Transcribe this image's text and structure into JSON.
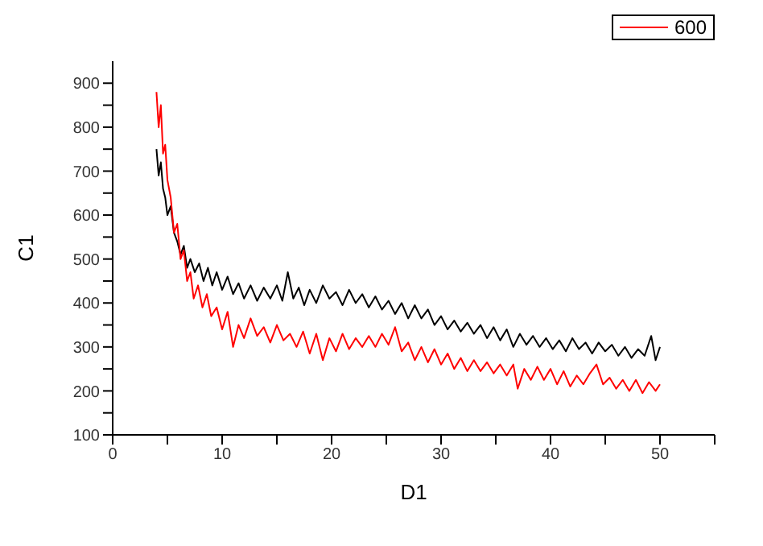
{
  "chart_data": {
    "type": "line",
    "xlabel": "D1",
    "ylabel": "C1",
    "xlim": [
      0,
      55
    ],
    "ylim": [
      100,
      950
    ],
    "xticks": [
      0,
      {
        "value": 5,
        "label": null
      },
      10,
      {
        "value": 15,
        "label": null
      },
      20,
      {
        "value": 25,
        "label": null
      },
      30,
      {
        "value": 35,
        "label": null
      },
      40,
      {
        "value": 45,
        "label": null
      },
      50,
      {
        "value": 55,
        "label": null
      }
    ],
    "yticks": [
      100,
      {
        "value": 150,
        "label": null
      },
      200,
      {
        "value": 250,
        "label": null
      },
      300,
      {
        "value": 350,
        "label": null
      },
      400,
      {
        "value": 450,
        "label": null
      },
      500,
      {
        "value": 550,
        "label": null
      },
      600,
      {
        "value": 650,
        "label": null
      },
      700,
      {
        "value": 750,
        "label": null
      },
      800,
      {
        "value": 850,
        "label": null
      },
      900
    ],
    "grid": false,
    "legend": "top right",
    "marker": "none",
    "line_style": "solid",
    "series": [
      {
        "color": "#000000",
        "x": [
          4,
          4.2,
          4.4,
          4.6,
          4.8,
          5,
          5.3,
          5.6,
          5.9,
          6.2,
          6.5,
          6.8,
          7.1,
          7.5,
          7.9,
          8.3,
          8.7,
          9.1,
          9.5,
          10,
          10.5,
          11,
          11.5,
          12,
          12.6,
          13.2,
          13.8,
          14.4,
          15,
          15.5,
          16,
          16.5,
          17,
          17.5,
          18,
          18.6,
          19.2,
          19.8,
          20.4,
          21,
          21.6,
          22.2,
          22.8,
          23.4,
          24,
          24.6,
          25.2,
          25.8,
          26.4,
          27,
          27.6,
          28.2,
          28.8,
          29.4,
          30,
          30.6,
          31.2,
          31.8,
          32.4,
          33,
          33.6,
          34.2,
          34.8,
          35.4,
          36,
          36.6,
          37.2,
          37.8,
          38.4,
          39,
          39.6,
          40.2,
          40.8,
          41.4,
          42,
          42.6,
          43.2,
          43.8,
          44.4,
          45,
          45.6,
          46.2,
          46.8,
          47.4,
          48,
          48.6,
          49.2,
          49.6,
          50
        ],
        "values": [
          750,
          690,
          720,
          660,
          640,
          600,
          620,
          560,
          540,
          510,
          530,
          480,
          500,
          470,
          490,
          450,
          480,
          440,
          470,
          430,
          460,
          420,
          445,
          410,
          440,
          405,
          435,
          410,
          440,
          405,
          470,
          410,
          435,
          395,
          430,
          400,
          440,
          410,
          425,
          395,
          430,
          400,
          420,
          390,
          415,
          385,
          405,
          375,
          400,
          365,
          395,
          365,
          385,
          350,
          370,
          340,
          360,
          335,
          355,
          330,
          350,
          320,
          345,
          315,
          340,
          300,
          330,
          305,
          325,
          300,
          320,
          295,
          315,
          290,
          320,
          295,
          310,
          285,
          310,
          290,
          305,
          280,
          300,
          275,
          295,
          280,
          325,
          270,
          300
        ]
      },
      {
        "name": "600",
        "color": "#ff0000",
        "x": [
          4,
          4.2,
          4.4,
          4.6,
          4.8,
          5,
          5.3,
          5.6,
          5.9,
          6.2,
          6.5,
          6.8,
          7.1,
          7.4,
          7.8,
          8.2,
          8.6,
          9,
          9.5,
          10,
          10.5,
          11,
          11.5,
          12,
          12.6,
          13.2,
          13.8,
          14.4,
          15,
          15.6,
          16.2,
          16.8,
          17.4,
          18,
          18.6,
          19.2,
          19.8,
          20.4,
          21,
          21.6,
          22.2,
          22.8,
          23.4,
          24,
          24.6,
          25.2,
          25.8,
          26.4,
          27,
          27.6,
          28.2,
          28.8,
          29.4,
          30,
          30.6,
          31.2,
          31.8,
          32.4,
          33,
          33.6,
          34.2,
          34.8,
          35.4,
          36,
          36.6,
          37,
          37.6,
          38.2,
          38.8,
          39.4,
          40,
          40.6,
          41.2,
          41.8,
          42.4,
          43,
          43.6,
          44.2,
          44.8,
          45.4,
          46,
          46.6,
          47.2,
          47.8,
          48.4,
          49,
          49.6,
          50
        ],
        "values": [
          880,
          800,
          850,
          740,
          760,
          680,
          640,
          560,
          580,
          500,
          520,
          450,
          470,
          410,
          440,
          390,
          420,
          370,
          390,
          340,
          380,
          300,
          350,
          320,
          365,
          325,
          345,
          310,
          350,
          315,
          330,
          300,
          335,
          285,
          330,
          270,
          320,
          290,
          330,
          295,
          320,
          300,
          325,
          300,
          330,
          305,
          345,
          290,
          310,
          270,
          300,
          265,
          295,
          260,
          285,
          250,
          275,
          245,
          270,
          245,
          265,
          240,
          260,
          235,
          260,
          205,
          250,
          225,
          255,
          225,
          250,
          215,
          245,
          210,
          235,
          215,
          240,
          260,
          215,
          230,
          205,
          225,
          200,
          225,
          195,
          220,
          200,
          215
        ]
      }
    ]
  }
}
